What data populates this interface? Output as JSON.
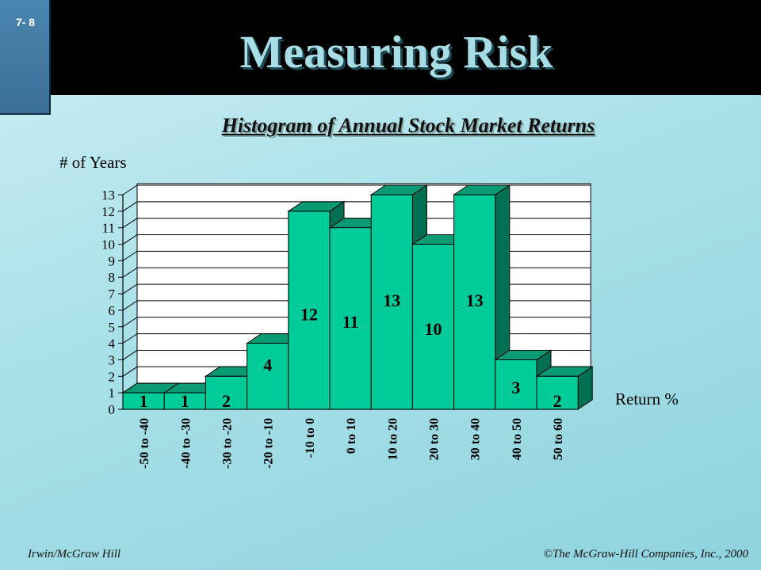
{
  "slide": {
    "number": "7- 8",
    "title": "Measuring Risk",
    "footer_left": "Irwin/McGraw Hill",
    "footer_right": "©The McGraw-Hill Companies, Inc., 2000"
  },
  "chart_data": {
    "type": "bar",
    "title": "Histogram of Annual Stock Market Returns",
    "ylabel": "# of Years",
    "xlabel": "Return %",
    "categories": [
      "-50 to -40",
      "-40 to -30",
      "-30 to -20",
      "-20 to -10",
      "-10 to 0",
      "0 to 10",
      "10 to 20",
      "20 to 30",
      "30 to 40",
      "40 to 50",
      "50 to 60"
    ],
    "values": [
      1,
      1,
      2,
      4,
      12,
      11,
      13,
      10,
      13,
      3,
      2
    ],
    "ylim": [
      0,
      13
    ],
    "yticks": [
      0,
      1,
      2,
      3,
      4,
      5,
      6,
      7,
      8,
      9,
      10,
      11,
      12,
      13
    ],
    "grid": true,
    "bar_color": "#00cc99",
    "bar_side_color": "#006f52",
    "bar_top_color": "#0a9a74"
  }
}
